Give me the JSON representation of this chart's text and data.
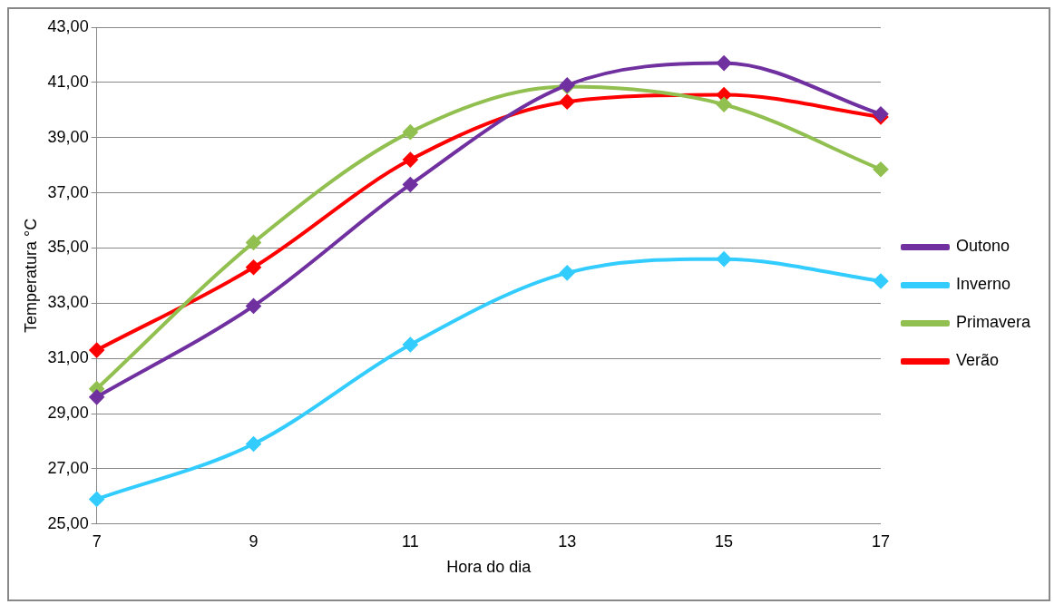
{
  "chart_data": {
    "type": "line",
    "xlabel": "Hora do dia",
    "ylabel": "Temperatura °C",
    "categories": [
      "7",
      "9",
      "11",
      "13",
      "15",
      "17"
    ],
    "series": [
      {
        "name": "Outono",
        "color": "#7030a0",
        "values": [
          29.6,
          32.9,
          37.3,
          40.9,
          41.7,
          39.85
        ]
      },
      {
        "name": "Inverno",
        "color": "#33ccff",
        "values": [
          25.9,
          27.9,
          31.5,
          34.1,
          34.6,
          33.8
        ]
      },
      {
        "name": "Primavera",
        "color": "#92c050",
        "values": [
          29.9,
          35.2,
          39.2,
          40.85,
          40.2,
          37.85
        ]
      },
      {
        "name": "Verão",
        "color": "#ff0000",
        "values": [
          31.3,
          34.3,
          38.2,
          40.3,
          40.55,
          39.75
        ]
      }
    ],
    "ylim": [
      25,
      43
    ],
    "yticks": [
      {
        "value": 25,
        "label": "25,00"
      },
      {
        "value": 27,
        "label": "27,00"
      },
      {
        "value": 29,
        "label": "29,00"
      },
      {
        "value": 31,
        "label": "31,00"
      },
      {
        "value": 33,
        "label": "33,00"
      },
      {
        "value": 35,
        "label": "35,00"
      },
      {
        "value": 37,
        "label": "37,00"
      },
      {
        "value": 39,
        "label": "39,00"
      },
      {
        "value": 41,
        "label": "41,00"
      },
      {
        "value": 43,
        "label": "43,00"
      }
    ],
    "grid": "y",
    "legend": "right",
    "marker": "diamond",
    "line_style": "solid"
  }
}
